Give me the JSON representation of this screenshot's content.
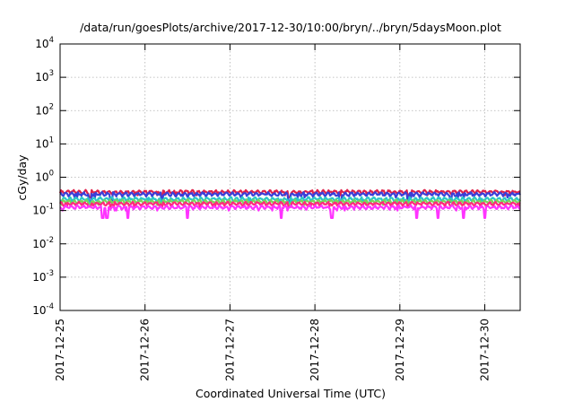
{
  "chart_data": {
    "type": "line",
    "title": "/data/run/goesPlots/archive/2017-12-30/10:00/bryn/../bryn/5daysMoon.plot",
    "xlabel": "Coordinated Universal Time (UTC)",
    "ylabel": "cGy/day",
    "yscale": "log",
    "ylim": [
      0.0001,
      10000
    ],
    "yticks": [
      {
        "base": "10",
        "exp": "4"
      },
      {
        "base": "10",
        "exp": "3"
      },
      {
        "base": "10",
        "exp": "2"
      },
      {
        "base": "10",
        "exp": "1"
      },
      {
        "base": "10",
        "exp": "0"
      },
      {
        "base": "10",
        "exp": "-1"
      },
      {
        "base": "10",
        "exp": "-2"
      },
      {
        "base": "10",
        "exp": "-3"
      },
      {
        "base": "10",
        "exp": "-4"
      }
    ],
    "xlim": [
      "2017-12-25T00:00",
      "2017-12-30T10:00"
    ],
    "xticks": [
      "2017-12-25",
      "2017-12-26",
      "2017-12-27",
      "2017-12-28",
      "2017-12-29",
      "2017-12-30"
    ],
    "grid": true,
    "legend": "none",
    "series": [
      {
        "color": "#e0204a",
        "level": 0.36,
        "dip_days": [
          0.35,
          1.2,
          2.7,
          4.1
        ],
        "dip_value": 0.25
      },
      {
        "color": "#3a3fd8",
        "level": 0.31,
        "dip_days": [
          0.35,
          0.6,
          1.2,
          2.7,
          3.3,
          4.1,
          4.6
        ],
        "dip_value": 0.18
      },
      {
        "color": "#29c7c7",
        "level": 0.22,
        "dip_days": [
          0.35,
          1.2,
          2.7,
          4.1
        ],
        "dip_value": 0.17
      },
      {
        "color": "#7ad45a",
        "level": 0.185,
        "dip_days": [
          0.35,
          1.2,
          2.7,
          4.1
        ],
        "dip_value": 0.15
      },
      {
        "color": "#ff2a7a",
        "level": 0.16,
        "dip_days": [
          0.35,
          1.2,
          2.7,
          4.1
        ],
        "dip_value": 0.13
      },
      {
        "color": "#ff33ff",
        "level": 0.125,
        "dip_days": [
          0.5,
          0.55,
          0.8,
          1.5,
          2.6,
          3.2,
          4.2,
          4.45,
          4.75,
          5.0
        ],
        "dip_value": 0.06
      }
    ]
  }
}
